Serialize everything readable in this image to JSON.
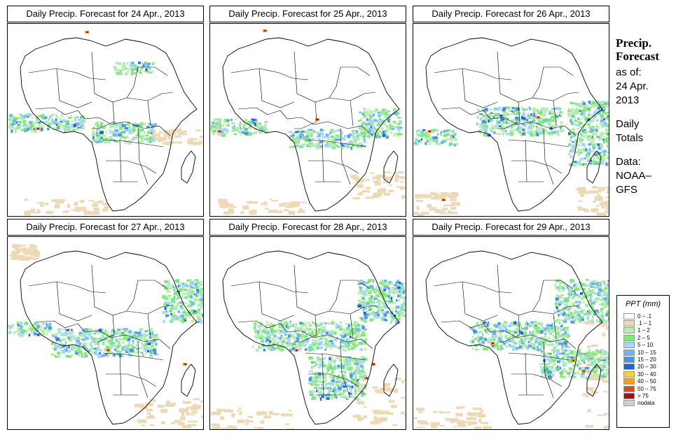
{
  "panels": [
    {
      "title": "Daily Precip. Forecast for  24 Apr., 2013"
    },
    {
      "title": "Daily Precip. Forecast for  25 Apr., 2013"
    },
    {
      "title": "Daily Precip. Forecast for  26 Apr., 2013"
    },
    {
      "title": "Daily Precip. Forecast for  27 Apr., 2013"
    },
    {
      "title": "Daily Precip. Forecast for  28 Apr., 2013"
    },
    {
      "title": "Daily Precip. Forecast for  29 Apr., 2013"
    }
  ],
  "side": {
    "title_line1": "Precip.",
    "title_line2": "Forecast",
    "as_of": "as of:",
    "date_line1": "24 Apr.",
    "date_line2": "2013",
    "daily_line1": "Daily",
    "daily_line2": "Totals",
    "data_line1": "Data:",
    "data_line2": "NOAA–",
    "data_line3": "GFS"
  },
  "legend": {
    "title": "PPT (mm)",
    "classes": [
      {
        "label": "0 – .1",
        "color": "#ffffff"
      },
      {
        "label": ".1 – 1",
        "color": "#eed9b6"
      },
      {
        "label": "1 – 2",
        "color": "#b5f0a6"
      },
      {
        "label": "2 – 5",
        "color": "#7ee87a"
      },
      {
        "label": "5 – 10",
        "color": "#a8d8f8"
      },
      {
        "label": "10 – 15",
        "color": "#6fb6f0"
      },
      {
        "label": "15 – 20",
        "color": "#4a90e8"
      },
      {
        "label": "20 – 30",
        "color": "#2060d8"
      },
      {
        "label": "30 – 40",
        "color": "#f6d040"
      },
      {
        "label": "40 – 50",
        "color": "#f2a020"
      },
      {
        "label": "50 – 75",
        "color": "#e04818"
      },
      {
        "label": "> 75",
        "color": "#a01010"
      },
      {
        "label": "nodata",
        "color": "#cfcfcf"
      }
    ]
  }
}
